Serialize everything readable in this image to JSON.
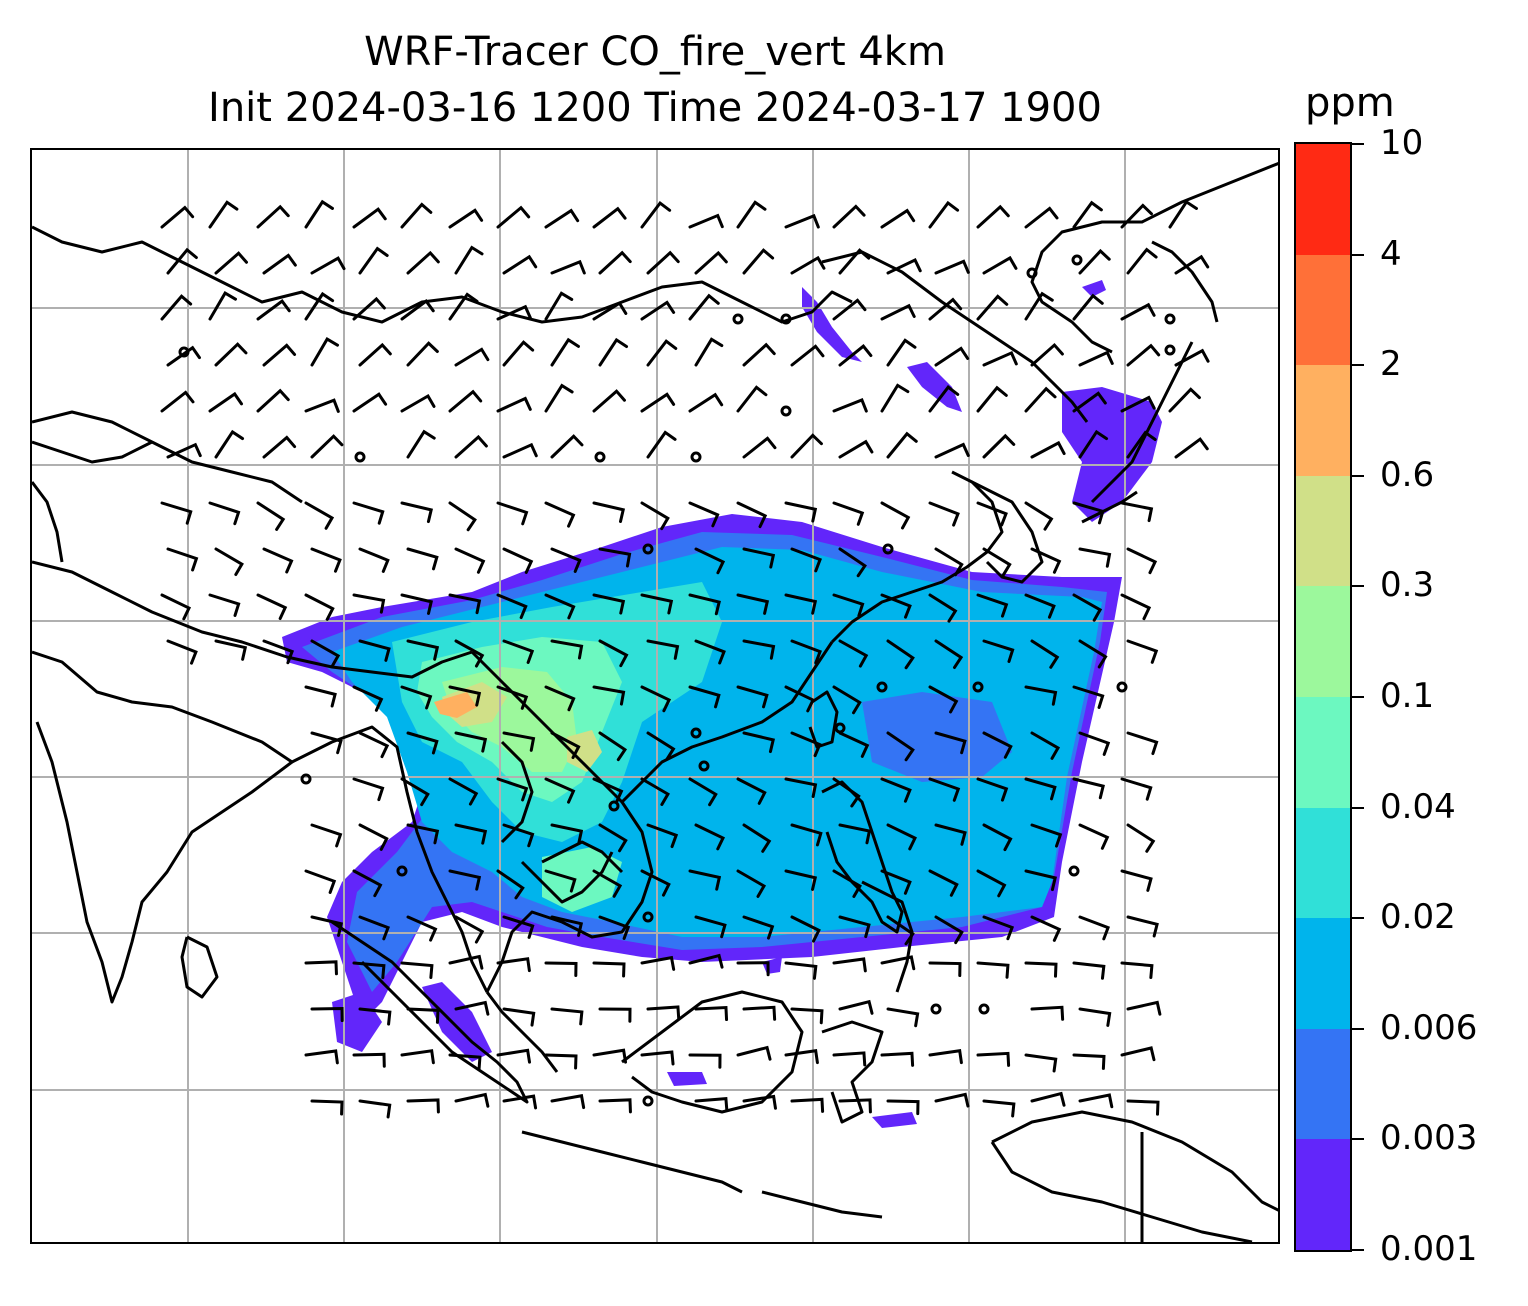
{
  "title": {
    "line1": "WRF-Tracer CO_fire_vert 4km",
    "line2": "Init 2024-03-16 1200 Time 2024-03-17 1900"
  },
  "colorbar": {
    "unit": "ppm",
    "levels": [
      "10",
      "4",
      "2",
      "0.6",
      "0.3",
      "0.1",
      "0.04",
      "0.02",
      "0.006",
      "0.003",
      "0.001"
    ],
    "colors": [
      "#ff2a14",
      "#ff7038",
      "#ffb060",
      "#d0e088",
      "#9cf89c",
      "#6cf8c0",
      "#30e0d8",
      "#00b4ec",
      "#3474f4",
      "#6226fa"
    ]
  },
  "map": {
    "features": [
      "coastlines",
      "country-borders",
      "lat-lon-gridlines",
      "wind-barbs",
      "tracer-concentration-field"
    ],
    "plume_colors": {
      "lowest": "#6226fa",
      "low": "#3474f4",
      "main": "#00b4ec",
      "mid": "#30e0d8",
      "upper": "#6cf8c0",
      "high": "#9cf89c",
      "peak": "#d0e088",
      "hotspot": "#ffb060"
    }
  }
}
